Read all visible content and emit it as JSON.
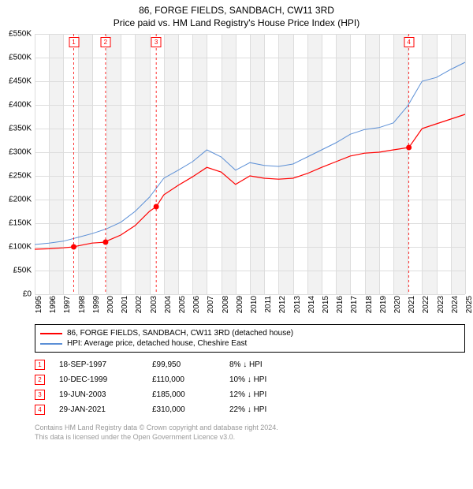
{
  "title": {
    "line1": "86, FORGE FIELDS, SANDBACH, CW11 3RD",
    "line2": "Price paid vs. HM Land Registry's House Price Index (HPI)"
  },
  "chart": {
    "type": "line",
    "background_color": "#ffffff",
    "grid_color": "#dddddd",
    "grid_band_color": "#f2f2f2",
    "axis_font_size": 10,
    "y": {
      "min": 0,
      "max": 550000,
      "step": 50000,
      "labels": [
        "£0",
        "£50K",
        "£100K",
        "£150K",
        "£200K",
        "£250K",
        "£300K",
        "£350K",
        "£400K",
        "£450K",
        "£500K",
        "£550K"
      ]
    },
    "x": {
      "min": 1995,
      "max": 2025,
      "labels": [
        "1995",
        "1996",
        "1997",
        "1998",
        "1999",
        "2000",
        "2001",
        "2002",
        "2003",
        "2004",
        "2005",
        "2006",
        "2007",
        "2008",
        "2009",
        "2010",
        "2011",
        "2012",
        "2013",
        "2014",
        "2015",
        "2016",
        "2017",
        "2018",
        "2019",
        "2020",
        "2021",
        "2022",
        "2023",
        "2024",
        "2025"
      ]
    },
    "series": [
      {
        "name": "86, FORGE FIELDS, SANDBACH, CW11 3RD (detached house)",
        "color": "#ff0000",
        "width": 1.2,
        "data": [
          [
            1995,
            95000
          ],
          [
            1996,
            96000
          ],
          [
            1997,
            98000
          ],
          [
            1997.72,
            99950
          ],
          [
            1998,
            102000
          ],
          [
            1999,
            108000
          ],
          [
            1999.94,
            110000
          ],
          [
            2000,
            112000
          ],
          [
            2001,
            125000
          ],
          [
            2002,
            145000
          ],
          [
            2003,
            175000
          ],
          [
            2003.47,
            185000
          ],
          [
            2004,
            210000
          ],
          [
            2005,
            230000
          ],
          [
            2006,
            248000
          ],
          [
            2007,
            268000
          ],
          [
            2008,
            258000
          ],
          [
            2009,
            232000
          ],
          [
            2010,
            250000
          ],
          [
            2011,
            245000
          ],
          [
            2012,
            243000
          ],
          [
            2013,
            245000
          ],
          [
            2014,
            255000
          ],
          [
            2015,
            268000
          ],
          [
            2016,
            280000
          ],
          [
            2017,
            292000
          ],
          [
            2018,
            298000
          ],
          [
            2019,
            300000
          ],
          [
            2020,
            305000
          ],
          [
            2021.08,
            310000
          ],
          [
            2022,
            350000
          ],
          [
            2023,
            360000
          ],
          [
            2024,
            370000
          ],
          [
            2025,
            380000
          ]
        ]
      },
      {
        "name": "HPI: Average price, detached house, Cheshire East",
        "color": "#5b8fd6",
        "width": 1.0,
        "data": [
          [
            1995,
            105000
          ],
          [
            1996,
            108000
          ],
          [
            1997,
            112000
          ],
          [
            1998,
            120000
          ],
          [
            1999,
            128000
          ],
          [
            2000,
            138000
          ],
          [
            2001,
            152000
          ],
          [
            2002,
            175000
          ],
          [
            2003,
            205000
          ],
          [
            2004,
            245000
          ],
          [
            2005,
            262000
          ],
          [
            2006,
            280000
          ],
          [
            2007,
            305000
          ],
          [
            2008,
            290000
          ],
          [
            2009,
            262000
          ],
          [
            2010,
            278000
          ],
          [
            2011,
            272000
          ],
          [
            2012,
            270000
          ],
          [
            2013,
            275000
          ],
          [
            2014,
            290000
          ],
          [
            2015,
            305000
          ],
          [
            2016,
            320000
          ],
          [
            2017,
            338000
          ],
          [
            2018,
            348000
          ],
          [
            2019,
            352000
          ],
          [
            2020,
            362000
          ],
          [
            2021,
            398000
          ],
          [
            2022,
            450000
          ],
          [
            2023,
            458000
          ],
          [
            2024,
            475000
          ],
          [
            2025,
            490000
          ]
        ]
      }
    ],
    "sale_markers": [
      {
        "n": "1",
        "year": 1997.72,
        "price": 99950
      },
      {
        "n": "2",
        "year": 1999.94,
        "price": 110000
      },
      {
        "n": "3",
        "year": 2003.47,
        "price": 185000
      },
      {
        "n": "4",
        "year": 2021.08,
        "price": 310000
      }
    ],
    "marker_line_color": "#ff0000",
    "marker_line_dash": "3,3",
    "marker_dot_radius": 3.5
  },
  "legend": {
    "items": [
      {
        "color": "#ff0000",
        "label": "86, FORGE FIELDS, SANDBACH, CW11 3RD (detached house)"
      },
      {
        "color": "#5b8fd6",
        "label": "HPI: Average price, detached house, Cheshire East"
      }
    ]
  },
  "sales": [
    {
      "n": "1",
      "date": "18-SEP-1997",
      "price": "£99,950",
      "delta": "8% ↓ HPI"
    },
    {
      "n": "2",
      "date": "10-DEC-1999",
      "price": "£110,000",
      "delta": "10% ↓ HPI"
    },
    {
      "n": "3",
      "date": "19-JUN-2003",
      "price": "£185,000",
      "delta": "12% ↓ HPI"
    },
    {
      "n": "4",
      "date": "29-JAN-2021",
      "price": "£310,000",
      "delta": "22% ↓ HPI"
    }
  ],
  "footer": {
    "line1": "Contains HM Land Registry data © Crown copyright and database right 2024.",
    "line2": "This data is licensed under the Open Government Licence v3.0."
  }
}
